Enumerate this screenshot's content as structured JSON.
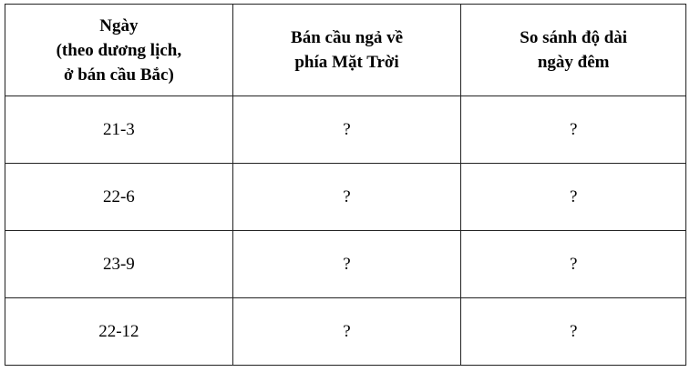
{
  "headers": [
    [
      "Ngày",
      "(theo dương lịch,",
      "ở bán cầu Bắc)"
    ],
    [
      "Bán cầu ngả về",
      "phía Mặt Trời"
    ],
    [
      "So sánh độ dài",
      "ngày đêm"
    ]
  ],
  "rows": [
    [
      "21-3",
      "?",
      "?"
    ],
    [
      "22-6",
      "?",
      "?"
    ],
    [
      "23-9",
      "?",
      "?"
    ],
    [
      "22-12",
      "?",
      "?"
    ]
  ]
}
